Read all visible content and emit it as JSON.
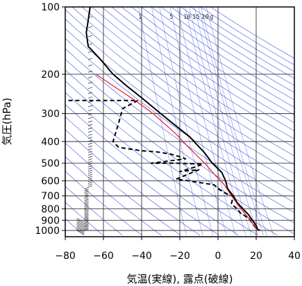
{
  "chart_data": {
    "type": "line",
    "title": "",
    "xlabel": "気温(実線), 露点(破線)",
    "ylabel": "気圧(hPa)",
    "xlim": [
      -80,
      40
    ],
    "ylim": [
      1050,
      100
    ],
    "y_scale": "log",
    "x_ticks": [
      -80,
      -60,
      -40,
      -20,
      0,
      20,
      40
    ],
    "x_tick_labels": [
      "−80",
      "−60",
      "−40",
      "−20",
      "0",
      "20",
      "40"
    ],
    "y_ticks": [
      100,
      200,
      300,
      400,
      500,
      600,
      700,
      800,
      900,
      1000
    ],
    "y_tick_labels": [
      "100",
      "200",
      "300",
      "400",
      "500",
      "600",
      "700",
      "800",
      "900",
      "1000"
    ],
    "mixing_ratio_labels": [
      "1",
      "5",
      "10",
      "15",
      "20",
      "g"
    ],
    "grid": true,
    "series": [
      {
        "kind": "temperature",
        "style": "solid",
        "color": "#000000",
        "points": [
          [
            -67,
            100
          ],
          [
            -68,
            115
          ],
          [
            -69,
            130
          ],
          [
            -68,
            150
          ],
          [
            -62,
            170
          ],
          [
            -55,
            200
          ],
          [
            -48,
            225
          ],
          [
            -40,
            255
          ],
          [
            -30,
            300
          ],
          [
            -24,
            330
          ],
          [
            -15,
            380
          ],
          [
            -7,
            450
          ],
          [
            -3,
            500
          ],
          [
            2,
            550
          ],
          [
            4,
            600
          ],
          [
            5,
            650
          ],
          [
            8,
            700
          ],
          [
            10,
            750
          ],
          [
            13,
            800
          ],
          [
            16,
            850
          ],
          [
            18,
            900
          ],
          [
            20,
            950
          ],
          [
            21,
            1000
          ]
        ]
      },
      {
        "kind": "dewpoint",
        "style": "dashed",
        "color": "#000000",
        "points": [
          [
            -82,
            262
          ],
          [
            -42,
            262
          ],
          [
            -50,
            285
          ],
          [
            -52,
            330
          ],
          [
            -55,
            400
          ],
          [
            -52,
            425
          ],
          [
            -40,
            440
          ],
          [
            -32,
            445
          ],
          [
            -25,
            455
          ],
          [
            -20,
            468
          ],
          [
            -17,
            478
          ],
          [
            -35,
            500
          ],
          [
            -22,
            500
          ],
          [
            -8,
            505
          ],
          [
            -12,
            520
          ],
          [
            -20,
            545
          ],
          [
            -10,
            535
          ],
          [
            -22,
            590
          ],
          [
            -15,
            600
          ],
          [
            -2,
            625
          ],
          [
            0,
            650
          ],
          [
            5,
            690
          ],
          [
            8,
            700
          ],
          [
            7,
            760
          ],
          [
            10,
            800
          ],
          [
            12,
            840
          ],
          [
            16,
            880
          ],
          [
            18,
            930
          ],
          [
            20,
            980
          ],
          [
            22,
            1000
          ]
        ]
      },
      {
        "kind": "parcel",
        "style": "solid",
        "color": "#e0202a",
        "points": [
          [
            -64,
            200
          ],
          [
            -44,
            260
          ],
          [
            -34,
            300
          ],
          [
            -22,
            370
          ],
          [
            -16,
            420
          ],
          [
            -7,
            500
          ],
          [
            -2,
            560
          ],
          [
            3,
            620
          ],
          [
            7,
            700
          ],
          [
            12,
            800
          ],
          [
            16,
            880
          ],
          [
            20,
            980
          ],
          [
            21,
            1000
          ]
        ]
      }
    ],
    "wind_profile_note": "wind barbs along left side"
  },
  "colors": {
    "background": "#ffffff",
    "grid_gray": "#333333",
    "adiabat_blue": "#3b4fe8",
    "temperature": "#000000",
    "dewpoint": "#000000",
    "parcel": "#e0202a"
  }
}
